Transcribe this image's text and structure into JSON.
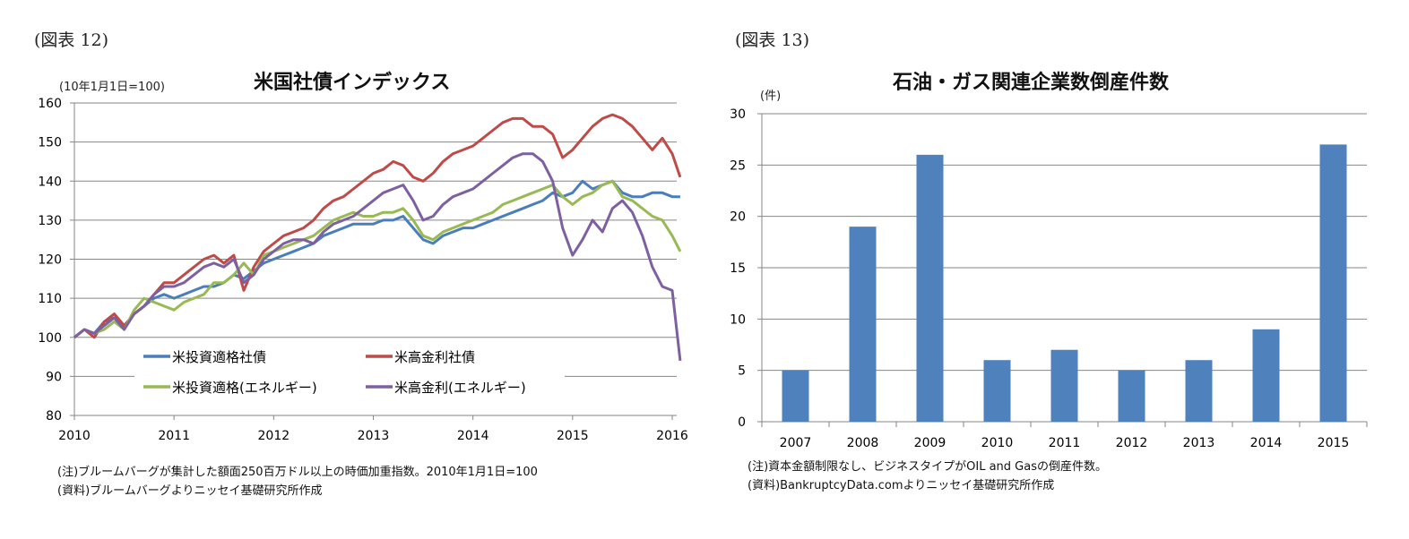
{
  "left": {
    "figure_label": "(図表 12)",
    "notes": [
      "(注)ブルームバーグが集計した額面250百万ドル以上の時価加重指数。2010年1月1日=100",
      "(資料)ブルームバーグよりニッセイ基礎研究所作成"
    ]
  },
  "right": {
    "figure_label": "(図表 13)",
    "notes": [
      "(注)資本金額制限なし、ビジネスタイプがOIL and Gasの倒産件数。",
      "(資料)BankruptcyData.comよりニッセイ基礎研究所作成"
    ]
  },
  "chart_data": [
    {
      "type": "line",
      "title": "米国社債インデックス",
      "ylabel": "(10年1月1日=100)",
      "xlabel": "",
      "xlim": [
        2010,
        2016.08
      ],
      "ylim": [
        80,
        160
      ],
      "x_ticks": [
        "2010",
        "2011",
        "2012",
        "2013",
        "2014",
        "2015",
        "2016"
      ],
      "y_ticks": [
        "80",
        "90",
        "100",
        "110",
        "120",
        "130",
        "140",
        "150",
        "160"
      ],
      "grid": true,
      "legend_position": "bottom-inside",
      "x": [
        2010.0,
        2010.1,
        2010.2,
        2010.3,
        2010.4,
        2010.5,
        2010.6,
        2010.7,
        2010.8,
        2010.9,
        2011.0,
        2011.1,
        2011.2,
        2011.3,
        2011.4,
        2011.5,
        2011.6,
        2011.7,
        2011.8,
        2011.9,
        2012.0,
        2012.1,
        2012.2,
        2012.3,
        2012.4,
        2012.5,
        2012.6,
        2012.7,
        2012.8,
        2012.9,
        2013.0,
        2013.1,
        2013.2,
        2013.3,
        2013.4,
        2013.5,
        2013.6,
        2013.7,
        2013.8,
        2013.9,
        2014.0,
        2014.1,
        2014.2,
        2014.3,
        2014.4,
        2014.5,
        2014.6,
        2014.7,
        2014.8,
        2014.9,
        2015.0,
        2015.1,
        2015.2,
        2015.3,
        2015.4,
        2015.5,
        2015.6,
        2015.7,
        2015.8,
        2015.9,
        2016.0,
        2016.08
      ],
      "series": [
        {
          "name": "米投資適格社債",
          "color": "#4a7ebb",
          "values": [
            100,
            102,
            101,
            104,
            105,
            103,
            106,
            108,
            110,
            111,
            110,
            111,
            112,
            113,
            113,
            114,
            116,
            115,
            117,
            119,
            120,
            121,
            122,
            123,
            124,
            126,
            127,
            128,
            129,
            129,
            129,
            130,
            130,
            131,
            128,
            125,
            124,
            126,
            127,
            128,
            128,
            129,
            130,
            131,
            132,
            133,
            134,
            135,
            137,
            136,
            137,
            140,
            138,
            139,
            140,
            137,
            136,
            136,
            137,
            137,
            136,
            136
          ]
        },
        {
          "name": "米高金利社債",
          "color": "#be4b48",
          "values": [
            100,
            102,
            100,
            104,
            106,
            103,
            106,
            108,
            111,
            114,
            114,
            116,
            118,
            120,
            121,
            119,
            121,
            112,
            118,
            122,
            124,
            126,
            127,
            128,
            130,
            133,
            135,
            136,
            138,
            140,
            142,
            143,
            145,
            144,
            141,
            140,
            142,
            145,
            147,
            148,
            149,
            151,
            153,
            155,
            156,
            156,
            154,
            154,
            152,
            146,
            148,
            151,
            154,
            156,
            157,
            156,
            154,
            151,
            148,
            151,
            147,
            141
          ]
        },
        {
          "name": "米投資適格(エネルギー)",
          "color": "#98b954",
          "values": [
            100,
            102,
            101,
            102,
            104,
            102,
            107,
            110,
            109,
            108,
            107,
            109,
            110,
            111,
            114,
            114,
            116,
            119,
            116,
            121,
            122,
            123,
            124,
            125,
            126,
            128,
            130,
            131,
            132,
            131,
            131,
            132,
            132,
            133,
            130,
            126,
            125,
            127,
            128,
            129,
            130,
            131,
            132,
            134,
            135,
            136,
            137,
            138,
            139,
            136,
            134,
            136,
            137,
            139,
            140,
            136,
            135,
            133,
            131,
            130,
            126,
            122
          ]
        },
        {
          "name": "米高金利(エネルギー)",
          "color": "#7d60a0",
          "values": [
            100,
            102,
            101,
            103,
            105,
            102,
            106,
            108,
            111,
            113,
            113,
            114,
            116,
            118,
            119,
            118,
            120,
            114,
            116,
            120,
            122,
            124,
            125,
            125,
            124,
            127,
            129,
            130,
            131,
            133,
            135,
            137,
            138,
            139,
            135,
            130,
            131,
            134,
            136,
            137,
            138,
            140,
            142,
            144,
            146,
            147,
            147,
            145,
            140,
            128,
            121,
            125,
            130,
            127,
            133,
            135,
            132,
            126,
            118,
            113,
            112,
            94
          ]
        }
      ]
    },
    {
      "type": "bar",
      "title": "石油・ガス関連企業数倒産件数",
      "ylabel": "(件)",
      "xlabel": "",
      "categories": [
        "2007",
        "2008",
        "2009",
        "2010",
        "2011",
        "2012",
        "2013",
        "2014",
        "2015"
      ],
      "values": [
        5,
        19,
        26,
        6,
        7,
        5,
        6,
        9,
        27
      ],
      "ylim": [
        0,
        30
      ],
      "y_ticks": [
        "0",
        "5",
        "10",
        "15",
        "20",
        "25",
        "30"
      ],
      "grid": true,
      "color": "#4f81bd"
    }
  ]
}
